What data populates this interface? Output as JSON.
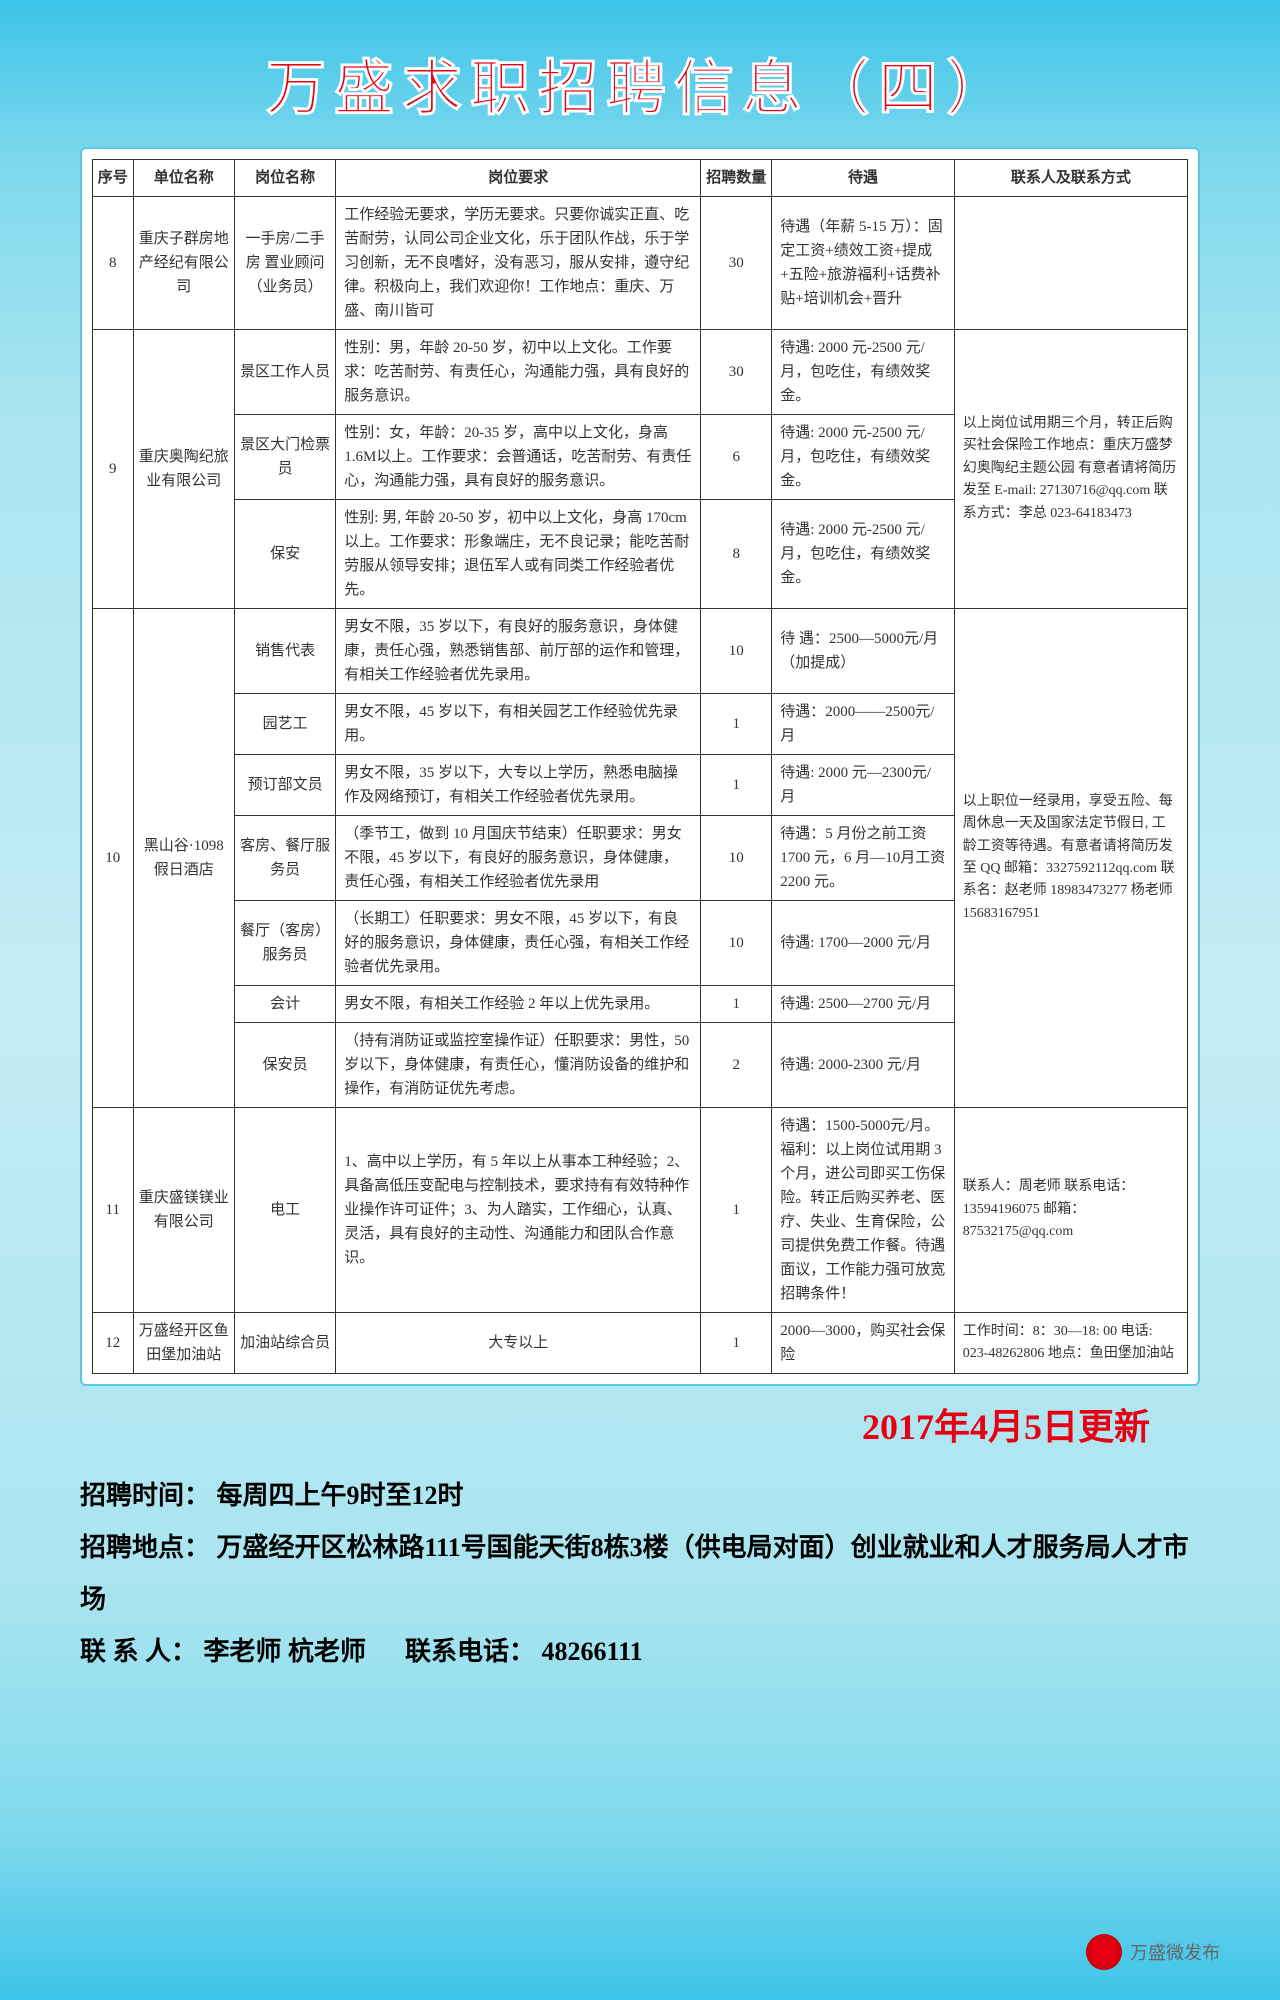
{
  "title": "万盛求职招聘信息（四）",
  "headers": {
    "seq": "序号",
    "org": "单位名称",
    "pos": "岗位名称",
    "req": "岗位要求",
    "num": "招聘数量",
    "treat": "待遇",
    "contact": "联系人及联系方式"
  },
  "rows": [
    {
      "seq": "8",
      "org": "重庆子群房地产经纪有限公司",
      "pos": "一手房/二手房 置业顾问（业务员）",
      "req": "工作经验无要求，学历无要求。只要你诚实正直、吃苦耐劳，认同公司企业文化，乐于团队作战，乐于学习创新，无不良嗜好，没有恶习，服从安排，遵守纪律。积极向上，我们欢迎你！工作地点：重庆、万盛、南川皆可",
      "num": "30",
      "treat": "待遇（年薪 5-15 万）：固定工资+绩效工资+提成+五险+旅游福利+话费补贴+培训机会+晋升",
      "contact": ""
    },
    {
      "seq": "9",
      "org": "重庆奥陶纪旅业有限公司",
      "positions": [
        {
          "pos": "景区工作人员",
          "req": "性别：男，年龄 20-50 岁，初中以上文化。工作要求：吃苦耐劳、有责任心，沟通能力强，具有良好的服务意识。",
          "num": "30",
          "treat": "待遇: 2000 元-2500 元/月，包吃住，有绩效奖金。"
        },
        {
          "pos": "景区大门检票员",
          "req": "性别：女，年龄：20-35 岁，高中以上文化，身高 1.6M以上。工作要求：会普通话，吃苦耐劳、有责任心，沟通能力强，具有良好的服务意识。",
          "num": "6",
          "treat": "待遇: 2000 元-2500 元/月，包吃住，有绩效奖金。"
        },
        {
          "pos": "保安",
          "req": "性别: 男, 年龄 20-50 岁，初中以上文化，身高 170cm 以上。工作要求：形象端庄，无不良记录；能吃苦耐劳服从领导安排；退伍军人或有同类工作经验者优先。",
          "num": "8",
          "treat": "待遇: 2000 元-2500 元/月，包吃住，有绩效奖金。"
        }
      ],
      "contact": "以上岗位试用期三个月，转正后购买社会保险工作地点：重庆万盛梦幻奥陶纪主题公园 有意者请将简历发至 E-mail: 27130716@qq.com 联系方式：李总 023-64183473"
    },
    {
      "seq": "10",
      "org": "黑山谷·1098假日酒店",
      "positions": [
        {
          "pos": "销售代表",
          "req": "男女不限，35 岁以下，有良好的服务意识，身体健康，责任心强，熟悉销售部、前厅部的运作和管理，有相关工作经验者优先录用。",
          "num": "10",
          "treat": "待 遇：2500—5000元/月（加提成）"
        },
        {
          "pos": "园艺工",
          "req": "男女不限，45 岁以下，有相关园艺工作经验优先录用。",
          "num": "1",
          "treat": "待遇：2000——2500元/月"
        },
        {
          "pos": "预订部文员",
          "req": "男女不限，35 岁以下，大专以上学历，熟悉电脑操作及网络预订，有相关工作经验者优先录用。",
          "num": "1",
          "treat": "待遇: 2000 元—2300元/月"
        },
        {
          "pos": "客房、餐厅服务员",
          "req": "（季节工，做到 10 月国庆节结束）任职要求：男女不限，45 岁以下，有良好的服务意识，身体健康，责任心强，有相关工作经验者优先录用",
          "num": "10",
          "treat": "待遇：5 月份之前工资 1700 元，6 月—10月工资 2200 元。"
        },
        {
          "pos": "餐厅（客房）服务员",
          "req": "（长期工）任职要求：男女不限，45 岁以下，有良好的服务意识，身体健康，责任心强，有相关工作经验者优先录用。",
          "num": "10",
          "treat": "待遇: 1700—2000 元/月"
        },
        {
          "pos": "会计",
          "req": "男女不限，有相关工作经验 2 年以上优先录用。",
          "num": "1",
          "treat": "待遇: 2500—2700 元/月"
        },
        {
          "pos": "保安员",
          "req": "（持有消防证或监控室操作证）任职要求：男性，50 岁以下，身体健康，有责任心，懂消防设备的维护和操作，有消防证优先考虑。",
          "num": "2",
          "treat": "待遇: 2000-2300 元/月"
        }
      ],
      "contact": "以上职位一经录用，享受五险、每周休息一天及国家法定节假日, 工龄工资等待遇。有意者请将简历发至 QQ 邮箱：3327592112qq.com 联系名：赵老师 18983473277 杨老师 15683167951"
    },
    {
      "seq": "11",
      "org": "重庆盛镁镁业有限公司",
      "pos": "电工",
      "req": "1、高中以上学历，有 5 年以上从事本工种经验；2、具备高低压变配电与控制技术，要求持有有效特种作业操作许可证件；3、为人踏实，工作细心，认真、灵活，具有良好的主动性、沟通能力和团队合作意识。",
      "num": "1",
      "treat": "待遇：1500-5000元/月。福利：以上岗位试用期 3 个月，进公司即买工伤保险。转正后购买养老、医疗、失业、生育保险，公司提供免费工作餐。待遇面议，工作能力强可放宽招聘条件！",
      "contact": "联系人：周老师 联系电话：13594196075 邮箱：87532175@qq.com"
    },
    {
      "seq": "12",
      "org": "万盛经开区鱼田堡加油站",
      "pos": "加油站综合员",
      "req": "大专以上",
      "num": "1",
      "treat": "2000—3000，购买社会保险",
      "contact": "工作时间：8：30—18: 00 电话: 023-48262806 地点：鱼田堡加油站"
    }
  ],
  "update": "2017年4月5日更新",
  "footer": {
    "time_label": "招聘时间：",
    "time": "每周四上午9时至12时",
    "addr_label": "招聘地点：",
    "addr": "万盛经开区松林路111号国能天街8栋3楼（供电局对面）创业就业和人才服务局人才市场",
    "person_label": "联 系 人：",
    "person": "李老师 杭老师",
    "phone_label": "联系电话：",
    "phone": "48266111"
  },
  "wechat": "万盛微发布"
}
